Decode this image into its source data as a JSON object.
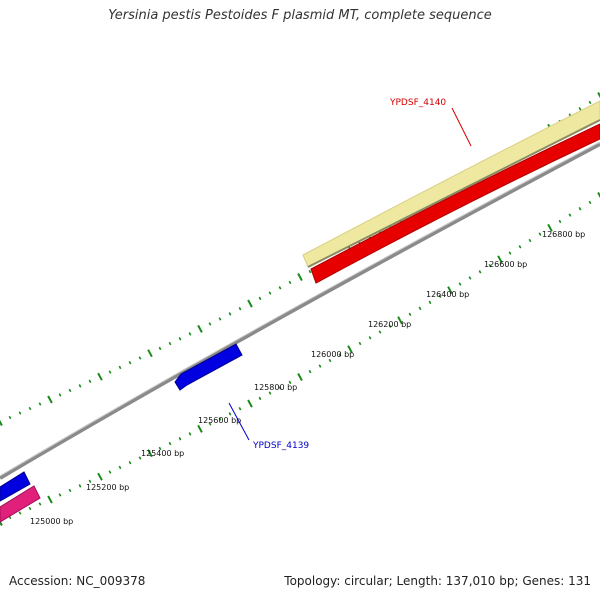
{
  "title": "Yersinia pestis Pestoides F plasmid MT, complete sequence",
  "footer": {
    "accession": "Accession: NC_009378",
    "summary": "Topology: circular; Length: 137,010 bp; Genes: 131"
  },
  "ticks": [
    {
      "label": "125000 bp"
    },
    {
      "label": "125200 bp"
    },
    {
      "label": "125400 bp"
    },
    {
      "label": "125600 bp"
    },
    {
      "label": "125800 bp"
    },
    {
      "label": "126000 bp"
    },
    {
      "label": "126200 bp"
    },
    {
      "label": "126400 bp"
    },
    {
      "label": "126600 bp"
    },
    {
      "label": "126800 bp"
    }
  ],
  "genes": [
    {
      "label": "YPDSF_4140",
      "color": "#d40000"
    },
    {
      "label": "YPDSF_4139",
      "color": "#0000c8"
    }
  ],
  "colors": {
    "backbone": "#7a7a7a",
    "tick": "#1a8a1a",
    "feature_yellow": "#efe8a0",
    "feature_red": "#e60000",
    "feature_blue": "#0000e0",
    "feature_pink": "#e0207a"
  }
}
